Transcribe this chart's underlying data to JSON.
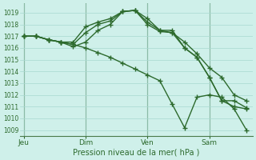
{
  "title": "Pression niveau de la mer( hPa )",
  "background_color": "#cff0ea",
  "grid_color": "#a8d8d0",
  "line_color": "#2d6a2d",
  "vline_color": "#4a7a4a",
  "ylim": [
    1008.5,
    1019.8
  ],
  "yticks": [
    1009,
    1010,
    1011,
    1012,
    1013,
    1014,
    1015,
    1016,
    1017,
    1018,
    1019
  ],
  "xtick_labels": [
    "Jeu",
    "Dim",
    "Ven",
    "Sam"
  ],
  "xtick_positions": [
    0,
    5,
    10,
    15
  ],
  "xlim": [
    -0.3,
    18.5
  ],
  "series": [
    [
      1017.0,
      1017.0,
      1016.7,
      1016.5,
      1016.3,
      1016.0,
      1015.6,
      1015.2,
      1014.7,
      1014.2,
      1013.7,
      1013.2,
      1011.2,
      1009.2,
      1011.8,
      1012.0,
      1011.8,
      1010.8,
      1009.0
    ],
    [
      1017.0,
      1017.0,
      1016.7,
      1016.5,
      1016.5,
      1017.8,
      1018.2,
      1018.5,
      1019.1,
      1019.2,
      1018.5,
      1017.5,
      1017.5,
      1016.0,
      1015.2,
      1013.5,
      1011.5,
      1011.5,
      1010.9
    ],
    [
      1017.0,
      1017.0,
      1016.7,
      1016.5,
      1016.3,
      1017.3,
      1018.0,
      1018.3,
      1019.1,
      1019.2,
      1018.2,
      1017.5,
      1017.3,
      1016.5,
      1015.5,
      1014.3,
      1013.5,
      1012.0,
      1011.5
    ],
    [
      1017.0,
      1017.0,
      1016.7,
      1016.5,
      1016.1,
      1016.5,
      1017.5,
      1018.0,
      1019.1,
      1019.2,
      1018.0,
      1017.4,
      1017.3,
      1016.0,
      1015.2,
      1013.5,
      1011.5,
      1011.0,
      1010.8
    ]
  ],
  "marker": "+",
  "marker_size": 4,
  "linewidth": 1.0
}
